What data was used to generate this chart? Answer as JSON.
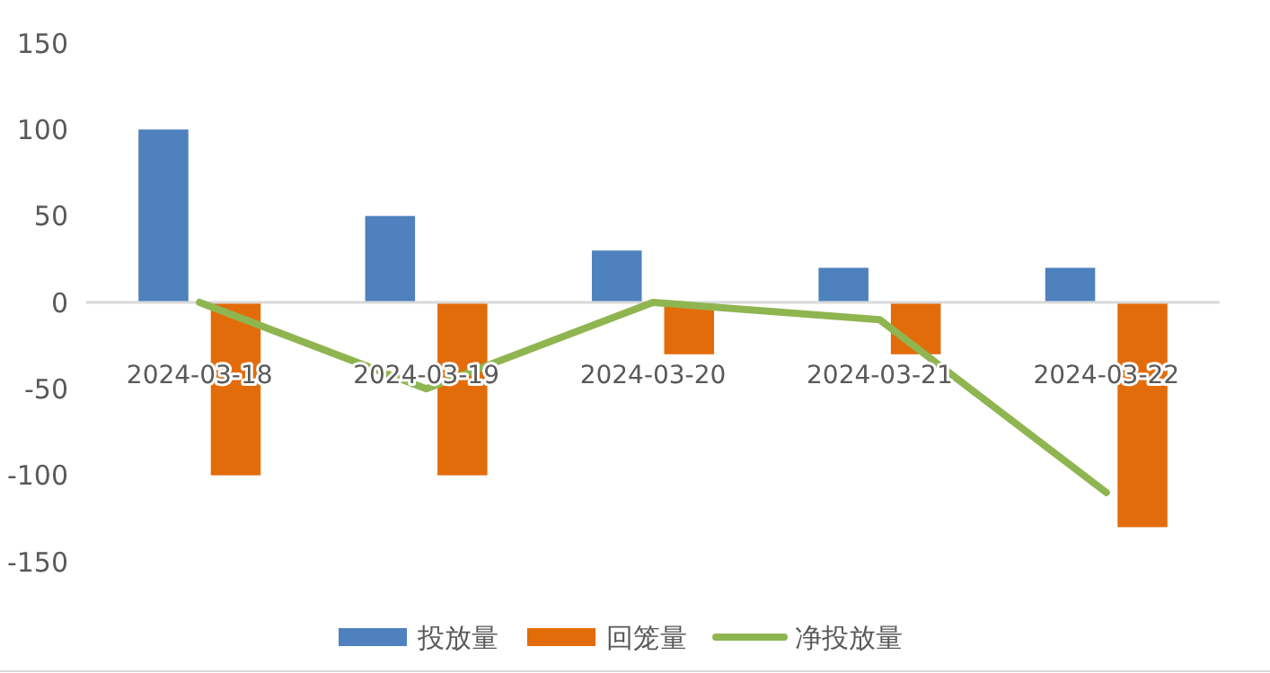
{
  "chart_data": {
    "type": "bar",
    "categories": [
      "2024-03-18",
      "2024-03-19",
      "2024-03-20",
      "2024-03-21",
      "2024-03-22"
    ],
    "series": [
      {
        "name": "投放量",
        "color": "#4e81bd",
        "values": [
          100,
          50,
          30,
          20,
          20
        ]
      },
      {
        "name": "回笼量",
        "color": "#e36c0a",
        "values": [
          -100,
          -100,
          -30,
          -30,
          -130
        ]
      },
      {
        "name": "净投放量",
        "type": "line",
        "color": "#8fb550",
        "values": [
          0,
          -50,
          0,
          -10,
          -110
        ]
      }
    ],
    "ylim": [
      -150,
      150
    ],
    "yticks": [
      -150,
      -100,
      -50,
      0,
      50,
      100,
      150
    ],
    "grid": false,
    "legend": "bottom",
    "marker": "none",
    "line_style": "solid"
  }
}
